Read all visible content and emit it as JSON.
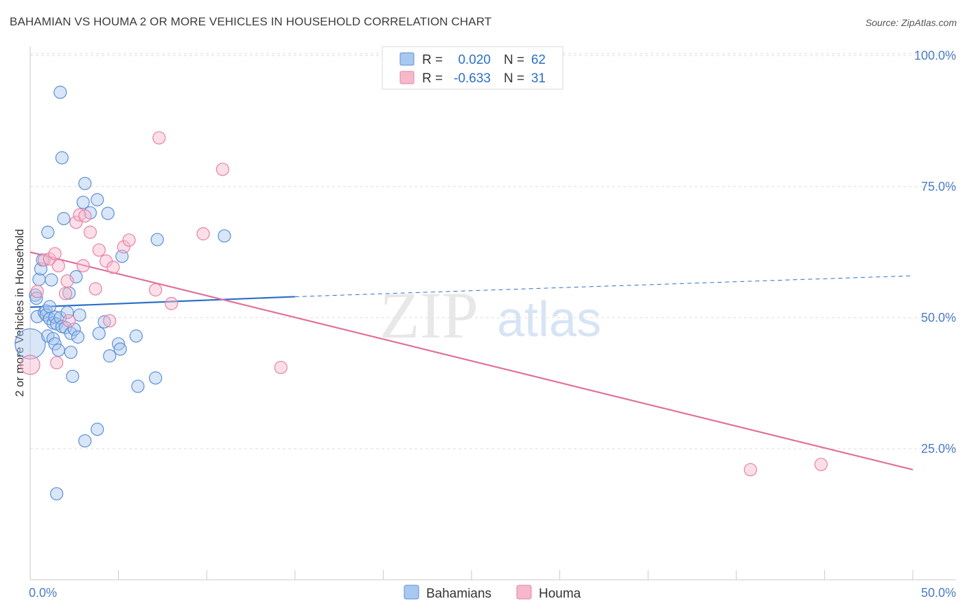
{
  "title": "BAHAMIAN VS HOUMA 2 OR MORE VEHICLES IN HOUSEHOLD CORRELATION CHART",
  "source": "Source: ZipAtlas.com",
  "watermark": {
    "zip": "ZIP",
    "atlas": "atlas"
  },
  "colors": {
    "blue_fill": "#a9c8f0",
    "blue_stroke": "#5b8fd6",
    "blue_line": "#2b6fc7",
    "pink_fill": "#f6b8cb",
    "pink_stroke": "#e880a3",
    "pink_line": "#e0709a",
    "grid": "#dcdcdc",
    "axis_text": "#4a7cc4"
  },
  "legend_stats": [
    {
      "r_label": "R =",
      "r_value": "0.020",
      "n_label": "N =",
      "n_value": "62",
      "series": "blue"
    },
    {
      "r_label": "R =",
      "r_value": "-0.633",
      "n_label": "N =",
      "n_value": "31",
      "series": "pink"
    }
  ],
  "chart_data": {
    "type": "scatter",
    "title": "BAHAMIAN VS HOUMA 2 OR MORE VEHICLES IN HOUSEHOLD CORRELATION CHART",
    "xlabel": "",
    "ylabel": "2 or more Vehicles in Household",
    "xlim": [
      0,
      50
    ],
    "ylim": [
      0,
      102
    ],
    "x_tick_labels": [
      "0.0%",
      "50.0%"
    ],
    "y_ticks": [
      {
        "value": 25,
        "label": "25.0%"
      },
      {
        "value": 50,
        "label": "50.0%"
      },
      {
        "value": 75,
        "label": "75.0%"
      },
      {
        "value": 100,
        "label": "100.0%"
      }
    ],
    "grid": true,
    "legend": "bottom-center",
    "series": [
      {
        "name": "Bahamians",
        "color": "blue",
        "trend": {
          "x0": 0,
          "y0": 52.0,
          "x1": 15,
          "y1": 54.0,
          "dash_to_x": 50,
          "dash_to_y": 58.0
        },
        "points": [
          [
            0.0,
            45.0,
            22
          ],
          [
            0.3,
            54.3,
            9
          ],
          [
            0.35,
            53.7,
            9
          ],
          [
            0.4,
            50.2,
            9
          ],
          [
            0.5,
            57.3,
            9
          ],
          [
            0.6,
            59.3,
            9
          ],
          [
            0.7,
            61.0,
            9
          ],
          [
            0.8,
            51.0,
            9
          ],
          [
            0.9,
            51.3,
            9
          ],
          [
            0.9,
            50.5,
            9
          ],
          [
            1.0,
            66.3,
            9
          ],
          [
            1.0,
            46.5,
            9
          ],
          [
            1.1,
            52.1,
            9
          ],
          [
            1.1,
            49.8,
            9
          ],
          [
            1.2,
            57.2,
            9
          ],
          [
            1.3,
            46.0,
            9
          ],
          [
            1.3,
            49.0,
            9
          ],
          [
            1.4,
            50.1,
            9
          ],
          [
            1.4,
            45.0,
            9
          ],
          [
            1.5,
            48.8,
            9
          ],
          [
            1.5,
            16.4,
            9
          ],
          [
            1.6,
            43.8,
            9
          ],
          [
            1.7,
            50.0,
            9
          ],
          [
            1.8,
            48.3,
            9
          ],
          [
            1.7,
            93.0,
            9
          ],
          [
            1.8,
            80.5,
            9
          ],
          [
            1.9,
            68.9,
            9
          ],
          [
            2.0,
            48.1,
            9
          ],
          [
            2.1,
            51.0,
            9
          ],
          [
            2.2,
            54.7,
            9
          ],
          [
            2.3,
            47.0,
            9
          ],
          [
            2.3,
            43.4,
            9
          ],
          [
            2.4,
            38.8,
            9
          ],
          [
            2.5,
            47.8,
            9
          ],
          [
            2.6,
            57.8,
            9
          ],
          [
            2.7,
            46.3,
            9
          ],
          [
            2.8,
            50.5,
            9
          ],
          [
            3.0,
            72.0,
            9
          ],
          [
            3.1,
            75.6,
            9
          ],
          [
            3.1,
            26.5,
            9
          ],
          [
            3.4,
            70.0,
            9
          ],
          [
            3.8,
            72.5,
            9
          ],
          [
            3.8,
            28.7,
            9
          ],
          [
            3.9,
            47.0,
            9
          ],
          [
            4.2,
            49.2,
            9
          ],
          [
            4.4,
            69.9,
            9
          ],
          [
            4.5,
            42.7,
            9
          ],
          [
            5.0,
            45.0,
            9
          ],
          [
            5.1,
            44.0,
            9
          ],
          [
            5.2,
            61.7,
            9
          ],
          [
            6.0,
            46.5,
            9
          ],
          [
            6.1,
            36.9,
            9
          ],
          [
            7.1,
            38.5,
            9
          ],
          [
            7.2,
            64.9,
            9
          ],
          [
            11.0,
            65.6,
            9
          ]
        ]
      },
      {
        "name": "Houma",
        "color": "pink",
        "trend": {
          "x0": 0,
          "y0": 62.5,
          "x1": 50,
          "y1": 21.0
        },
        "points": [
          [
            0.0,
            41.0,
            14
          ],
          [
            0.4,
            55.0,
            9
          ],
          [
            0.8,
            61.0,
            9
          ],
          [
            1.1,
            61.2,
            9
          ],
          [
            1.4,
            62.2,
            9
          ],
          [
            1.5,
            41.4,
            9
          ],
          [
            1.6,
            59.9,
            9
          ],
          [
            2.0,
            54.6,
            9
          ],
          [
            2.1,
            57.0,
            9
          ],
          [
            2.2,
            49.4,
            9
          ],
          [
            2.6,
            68.2,
            9
          ],
          [
            2.8,
            69.6,
            9
          ],
          [
            3.0,
            59.9,
            9
          ],
          [
            3.1,
            69.4,
            9
          ],
          [
            3.4,
            66.3,
            9
          ],
          [
            3.7,
            55.5,
            9
          ],
          [
            3.9,
            62.9,
            9
          ],
          [
            4.3,
            60.8,
            9
          ],
          [
            4.5,
            49.4,
            9
          ],
          [
            4.7,
            59.6,
            9
          ],
          [
            5.3,
            63.5,
            9
          ],
          [
            5.6,
            64.8,
            9
          ],
          [
            7.1,
            55.3,
            9
          ],
          [
            7.3,
            84.3,
            9
          ],
          [
            8.0,
            52.7,
            9
          ],
          [
            9.8,
            66.0,
            9
          ],
          [
            10.9,
            78.3,
            9
          ],
          [
            14.2,
            40.5,
            9
          ],
          [
            40.8,
            21.0,
            9
          ],
          [
            44.8,
            22.0,
            9
          ]
        ]
      }
    ]
  }
}
